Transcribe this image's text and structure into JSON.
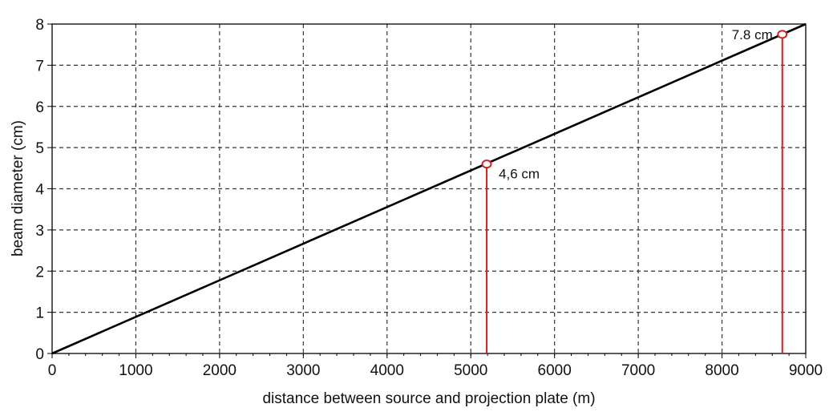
{
  "chart_data": {
    "type": "line",
    "title": "",
    "xlabel": "distance between source and projection plate (m)",
    "ylabel": "beam diameter (cm)",
    "xlim": [
      0,
      9000
    ],
    "ylim": [
      0,
      8
    ],
    "x_ticks": [
      "0",
      "1000",
      "2000",
      "3000",
      "4000",
      "5000",
      "6000",
      "7000",
      "8000",
      "9000"
    ],
    "y_ticks": [
      "0",
      "1",
      "2",
      "3",
      "4",
      "5",
      "6",
      "7",
      "8"
    ],
    "grid": true,
    "series": [
      {
        "name": "beam diameter",
        "color": "#000000",
        "x": [
          0,
          9000
        ],
        "y": [
          0,
          8.0
        ]
      }
    ],
    "annotations": [
      {
        "label": "4,6 cm",
        "x": 5190,
        "y": 4.6,
        "color": "#cc2222"
      },
      {
        "label": "7.8 cm",
        "x": 8720,
        "y": 7.75,
        "color": "#cc2222"
      }
    ]
  },
  "labels": {
    "xlabel": "distance between source and projection plate (m)",
    "ylabel": "beam diameter (cm)",
    "ann1": "4,6 cm",
    "ann2": "7.8 cm"
  }
}
